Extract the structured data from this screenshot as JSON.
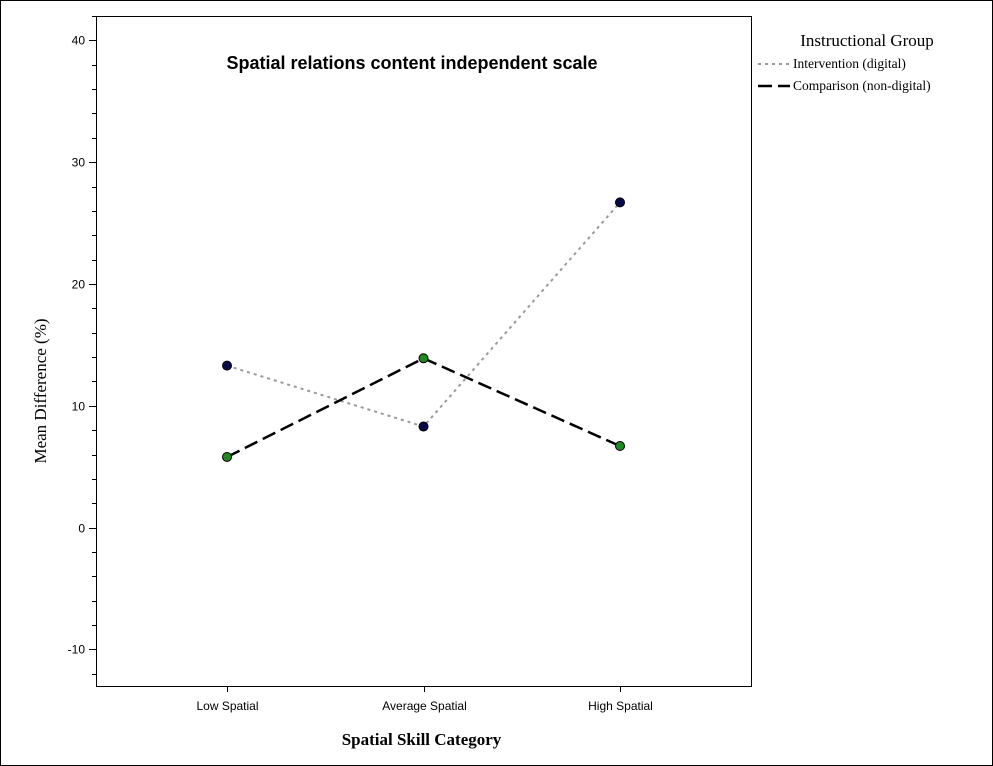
{
  "chart_data": {
    "type": "line",
    "title": "Spatial relations content independent scale",
    "xlabel": "Spatial Skill Category",
    "ylabel": "Mean Difference (%)",
    "categories": [
      "Low Spatial",
      "Average Spatial",
      "High Spatial"
    ],
    "ylim": [
      -13,
      42
    ],
    "yticks": [
      -10,
      0,
      10,
      20,
      30,
      40
    ],
    "grid": false,
    "legend": {
      "title": "Instructional Group",
      "placement": "outside-top-right"
    },
    "series": [
      {
        "name": "Intervention (digital)",
        "values": [
          13.3,
          8.3,
          26.7
        ],
        "line_color": "#999999",
        "line_style": "dotted",
        "marker_color": "#0a0a4a"
      },
      {
        "name": "Comparison (non-digital)",
        "values": [
          5.8,
          13.9,
          6.7
        ],
        "line_color": "#000000",
        "line_style": "dashed",
        "marker_color": "#1f8a1f"
      }
    ]
  }
}
